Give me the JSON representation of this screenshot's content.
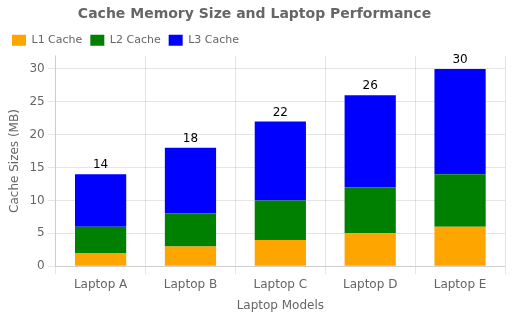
{
  "chart_data": {
    "type": "bar",
    "stacked": true,
    "title": "Cache Memory Size and Laptop Performance",
    "x_label": "Laptop Models",
    "y_label": "Cache Sizes (MB)",
    "categories": [
      "Laptop A",
      "Laptop B",
      "Laptop C",
      "Laptop D",
      "Laptop E"
    ],
    "series": [
      {
        "name": "L1 Cache",
        "color": "#FFA500",
        "values": [
          2,
          3,
          4,
          5,
          6
        ]
      },
      {
        "name": "L2 Cache",
        "color": "#008000",
        "values": [
          4,
          5,
          6,
          7,
          8
        ]
      },
      {
        "name": "L3 Cache",
        "color": "#0000FF",
        "values": [
          8,
          10,
          12,
          14,
          16
        ]
      }
    ],
    "totals": [
      14,
      18,
      22,
      26,
      30
    ],
    "ylim": [
      0,
      32
    ],
    "yticks": [
      0,
      5,
      10,
      15,
      20,
      25,
      30
    ],
    "grid": true,
    "legend": "upper left"
  }
}
